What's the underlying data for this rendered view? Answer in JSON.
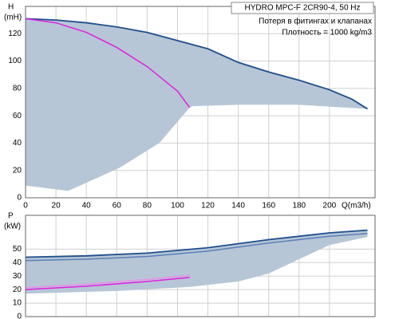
{
  "chart_data": [
    {
      "type": "line",
      "title": "HYDRO MPC-F 2CR90-4, 50 Hz",
      "annotations": [
        "Потеря в фитингах и клапанах",
        "Плотность = 1000 kg/m3"
      ],
      "ylabel": "H",
      "yunit": "(mH)",
      "xlabel": "Q(m3/h)",
      "xlim": [
        0,
        230
      ],
      "ylim": [
        0,
        140
      ],
      "xticks": [
        0,
        20,
        40,
        60,
        80,
        100,
        120,
        140,
        160,
        180,
        200
      ],
      "yticks": [
        0,
        20,
        40,
        60,
        80,
        100,
        120
      ],
      "grid": true,
      "area": {
        "color": "#b6c6d6",
        "x": [
          0,
          20,
          40,
          60,
          80,
          100,
          120,
          140,
          160,
          180,
          200,
          215,
          225,
          180,
          140,
          110,
          108,
          88,
          62,
          28,
          0
        ],
        "y": [
          131,
          130,
          128,
          125,
          121,
          115,
          109,
          99,
          92,
          86,
          79,
          72,
          65,
          68,
          68,
          67,
          66,
          40,
          22,
          5,
          9
        ]
      },
      "series": [
        {
          "color": "#1f4e8c",
          "x": [
            0,
            20,
            40,
            60,
            80,
            100,
            120,
            140,
            160,
            180,
            200,
            215,
            225
          ],
          "values": [
            131,
            130,
            128,
            125,
            121,
            115,
            109,
            99,
            92,
            86,
            79,
            72,
            65
          ]
        },
        {
          "color": "#e020e0",
          "x": [
            0,
            20,
            40,
            60,
            80,
            100,
            108
          ],
          "values": [
            131,
            128,
            121,
            110,
            96,
            78,
            66
          ]
        }
      ]
    },
    {
      "type": "line",
      "ylabel": "P",
      "yunit": "(kW)",
      "xlim": [
        0,
        230
      ],
      "ylim": [
        0,
        75
      ],
      "xticks": [
        0,
        20,
        40,
        60,
        80,
        100,
        120,
        140,
        160,
        180,
        200
      ],
      "yticks": [
        0,
        10,
        20,
        30,
        40,
        50
      ],
      "grid": true,
      "area": {
        "color": "#b6c6d6",
        "x": [
          0,
          40,
          80,
          120,
          160,
          200,
          225,
          225,
          200,
          160,
          140,
          108,
          60,
          0
        ],
        "y": [
          44,
          45,
          47,
          51,
          57,
          62,
          64,
          59,
          53,
          32,
          26,
          22,
          19,
          17
        ]
      },
      "series": [
        {
          "color": "#1f4e8c",
          "x": [
            0,
            40,
            80,
            120,
            160,
            200,
            225
          ],
          "values": [
            44,
            45,
            47,
            51,
            57,
            62,
            64
          ]
        },
        {
          "color": "#5b7fb5",
          "x": [
            0,
            40,
            80,
            120,
            160,
            200,
            225
          ],
          "values": [
            41.5,
            42.5,
            44.5,
            48.5,
            54.5,
            59.5,
            61.5
          ]
        },
        {
          "color": "#e020e0",
          "x": [
            0,
            40,
            80,
            108
          ],
          "values": [
            20,
            22.5,
            26,
            29
          ]
        },
        {
          "color": "#e890e8",
          "x": [
            0,
            40,
            80,
            108
          ],
          "values": [
            21.5,
            24,
            27.5,
            30.5
          ]
        }
      ]
    }
  ]
}
